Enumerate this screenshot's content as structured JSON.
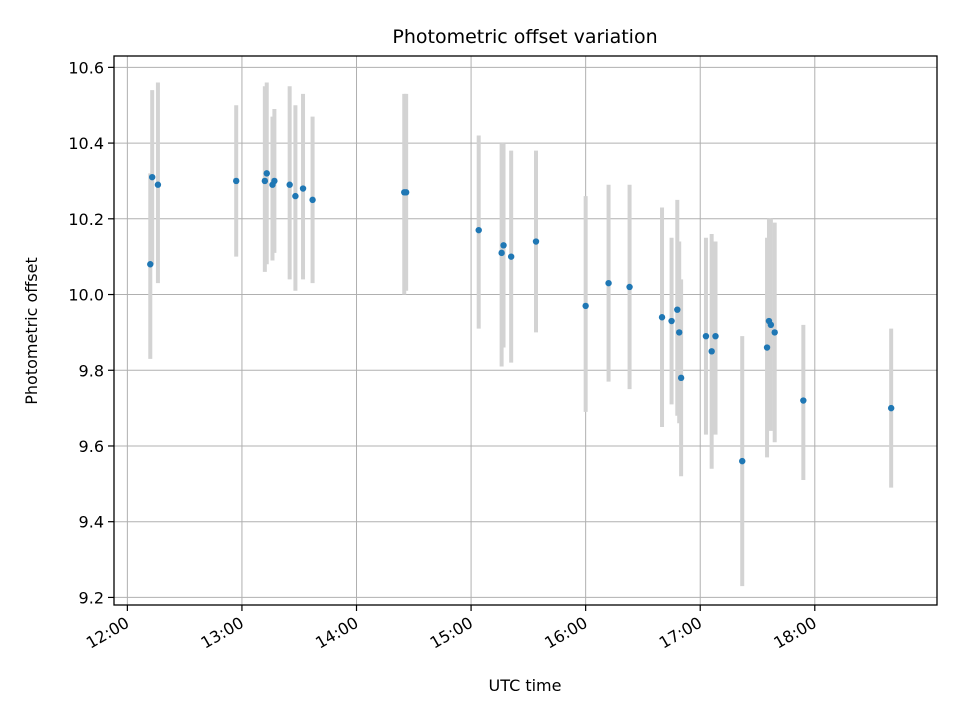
{
  "chart_data": {
    "type": "scatter",
    "title": "Photometric offset variation",
    "xlabel": "UTC time",
    "ylabel": "Photometric offset",
    "x_ticks": [
      "12:00",
      "13:00",
      "14:00",
      "15:00",
      "16:00",
      "17:00",
      "18:00"
    ],
    "y_ticks": [
      "9.2",
      "9.4",
      "9.6",
      "9.8",
      "10.0",
      "10.2",
      "10.4",
      "10.6"
    ],
    "xlim": [
      "11:53",
      "19:04"
    ],
    "ylim": [
      9.18,
      10.63
    ],
    "grid": true,
    "point_color": "#1f77b4",
    "errorbar_color": "#d3d3d3",
    "points": [
      {
        "x": "12:12",
        "y": 10.08,
        "lo": 9.83,
        "hi": 10.32
      },
      {
        "x": "12:13",
        "y": 10.31,
        "lo": 10.08,
        "hi": 10.54
      },
      {
        "x": "12:16",
        "y": 10.29,
        "lo": 10.03,
        "hi": 10.56
      },
      {
        "x": "12:57",
        "y": 10.3,
        "lo": 10.1,
        "hi": 10.5
      },
      {
        "x": "13:12",
        "y": 10.3,
        "lo": 10.06,
        "hi": 10.55
      },
      {
        "x": "13:13",
        "y": 10.32,
        "lo": 10.08,
        "hi": 10.56
      },
      {
        "x": "13:16",
        "y": 10.29,
        "lo": 10.09,
        "hi": 10.47
      },
      {
        "x": "13:17",
        "y": 10.3,
        "lo": 10.11,
        "hi": 10.49
      },
      {
        "x": "13:25",
        "y": 10.29,
        "lo": 10.04,
        "hi": 10.55
      },
      {
        "x": "13:28",
        "y": 10.26,
        "lo": 10.01,
        "hi": 10.5
      },
      {
        "x": "13:32",
        "y": 10.28,
        "lo": 10.04,
        "hi": 10.53
      },
      {
        "x": "13:37",
        "y": 10.25,
        "lo": 10.03,
        "hi": 10.47
      },
      {
        "x": "14:25",
        "y": 10.27,
        "lo": 10.0,
        "hi": 10.53
      },
      {
        "x": "14:26",
        "y": 10.27,
        "lo": 10.01,
        "hi": 10.53
      },
      {
        "x": "15:04",
        "y": 10.17,
        "lo": 9.91,
        "hi": 10.42
      },
      {
        "x": "15:16",
        "y": 10.11,
        "lo": 9.81,
        "hi": 10.4
      },
      {
        "x": "15:17",
        "y": 10.13,
        "lo": 9.86,
        "hi": 10.4
      },
      {
        "x": "15:21",
        "y": 10.1,
        "lo": 9.82,
        "hi": 10.38
      },
      {
        "x": "15:34",
        "y": 10.14,
        "lo": 9.9,
        "hi": 10.38
      },
      {
        "x": "16:00",
        "y": 9.97,
        "lo": 9.69,
        "hi": 10.26
      },
      {
        "x": "16:12",
        "y": 10.03,
        "lo": 9.77,
        "hi": 10.29
      },
      {
        "x": "16:23",
        "y": 10.02,
        "lo": 9.75,
        "hi": 10.29
      },
      {
        "x": "16:40",
        "y": 9.94,
        "lo": 9.65,
        "hi": 10.23
      },
      {
        "x": "16:45",
        "y": 9.93,
        "lo": 9.71,
        "hi": 10.15
      },
      {
        "x": "16:48",
        "y": 9.96,
        "lo": 9.68,
        "hi": 10.25
      },
      {
        "x": "16:49",
        "y": 9.9,
        "lo": 9.66,
        "hi": 10.14
      },
      {
        "x": "16:50",
        "y": 9.78,
        "lo": 9.52,
        "hi": 10.04
      },
      {
        "x": "17:03",
        "y": 9.89,
        "lo": 9.63,
        "hi": 10.15
      },
      {
        "x": "17:06",
        "y": 9.85,
        "lo": 9.54,
        "hi": 10.16
      },
      {
        "x": "17:08",
        "y": 9.89,
        "lo": 9.63,
        "hi": 10.14
      },
      {
        "x": "17:22",
        "y": 9.56,
        "lo": 9.23,
        "hi": 9.89
      },
      {
        "x": "17:35",
        "y": 9.86,
        "lo": 9.57,
        "hi": 10.15
      },
      {
        "x": "17:36",
        "y": 9.93,
        "lo": 9.66,
        "hi": 10.2
      },
      {
        "x": "17:37",
        "y": 9.92,
        "lo": 9.64,
        "hi": 10.2
      },
      {
        "x": "17:39",
        "y": 9.9,
        "lo": 9.61,
        "hi": 10.19
      },
      {
        "x": "17:54",
        "y": 9.72,
        "lo": 9.51,
        "hi": 9.92
      },
      {
        "x": "18:40",
        "y": 9.7,
        "lo": 9.49,
        "hi": 9.91
      }
    ]
  }
}
